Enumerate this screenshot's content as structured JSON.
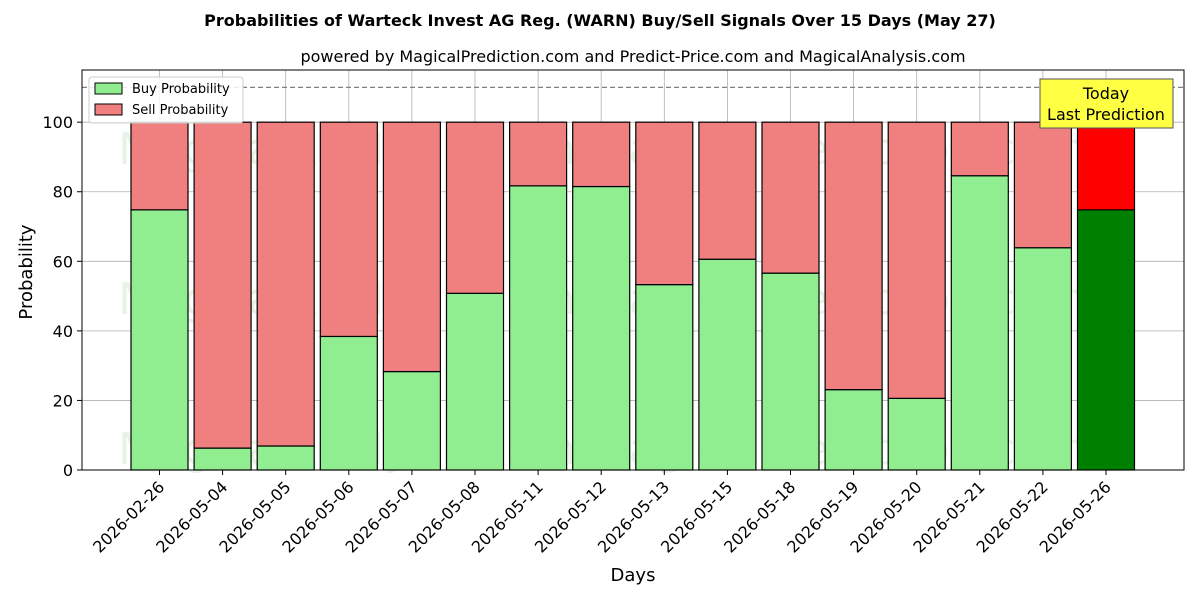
{
  "chart_data": {
    "type": "bar",
    "stacked": true,
    "title": "Probabilities of Warteck Invest AG Reg. (WARN) Buy/Sell Signals Over 15 Days (May 27)",
    "subtitle": "powered by MagicalPrediction.com and Predict-Price.com and MagicalAnalysis.com",
    "xlabel": "Days",
    "ylabel": "Probability",
    "ylim": [
      0,
      115
    ],
    "yticks": [
      0,
      20,
      40,
      60,
      80,
      100
    ],
    "reference_line": 110,
    "grid": true,
    "legend_position": "top-left",
    "categories": [
      "2026-02-26",
      "2026-05-04",
      "2026-05-05",
      "2026-05-06",
      "2026-05-07",
      "2026-05-08",
      "2026-05-11",
      "2026-05-12",
      "2026-05-13",
      "2026-05-15",
      "2026-05-18",
      "2026-05-19",
      "2026-05-20",
      "2026-05-21",
      "2026-05-22",
      "2026-05-26"
    ],
    "series": [
      {
        "name": "Buy Probability",
        "color": "#90ee90",
        "values": [
          74.8,
          6.3,
          6.9,
          38.4,
          28.3,
          50.8,
          81.7,
          81.5,
          53.3,
          60.6,
          56.6,
          23.1,
          20.6,
          84.6,
          63.9,
          74.8
        ]
      },
      {
        "name": "Sell Probability",
        "color": "#f08080",
        "values": [
          25.2,
          93.7,
          93.1,
          61.6,
          71.7,
          49.2,
          18.3,
          18.5,
          46.7,
          39.4,
          43.4,
          76.9,
          79.4,
          15.4,
          36.1,
          25.2
        ]
      }
    ],
    "highlight": {
      "index": 15,
      "buy_color": "#008000",
      "sell_color": "#ff0000"
    },
    "annotation": {
      "lines": [
        "Today",
        "Last Prediction"
      ],
      "background": "#ffff44"
    },
    "watermarks": [
      "MagicalAnalysis.com",
      "MagicalPrediction.com"
    ]
  }
}
